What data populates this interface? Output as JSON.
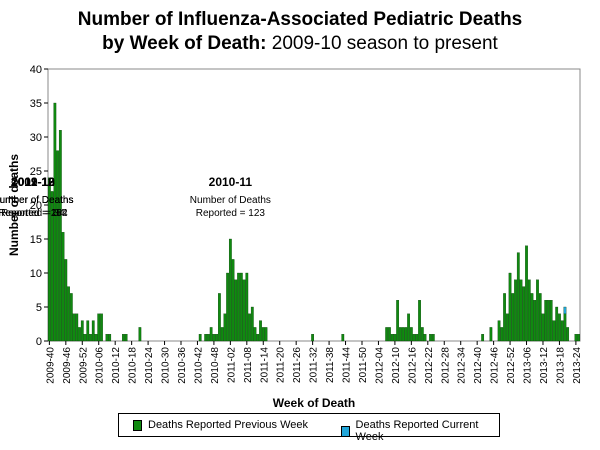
{
  "chart_data": {
    "type": "bar",
    "title_line1": "Number of Influenza-Associated Pediatric Deaths",
    "title_line2_bold": "by Week of Death:",
    "title_line2_rest": " 2009-10 season to present",
    "xlabel": "Week of Death",
    "ylabel": "Number of deaths",
    "ylim": [
      0,
      40
    ],
    "yticks": [
      0,
      5,
      10,
      15,
      20,
      25,
      30,
      35,
      40
    ],
    "xtick_labels": [
      "2009-40",
      "2009-46",
      "2009-52",
      "2010-06",
      "2010-12",
      "2010-18",
      "2010-24",
      "2010-30",
      "2010-36",
      "2010-42",
      "2010-48",
      "2011-02",
      "2011-08",
      "2011-14",
      "2011-20",
      "2011-26",
      "2011-32",
      "2011-38",
      "2011-44",
      "2011-50",
      "2012-04",
      "2012-10",
      "2012-16",
      "2012-22",
      "2012-28",
      "2012-34",
      "2012-40",
      "2012-46",
      "2012-52",
      "2013-06",
      "2013-12",
      "2013-18",
      "2013-24"
    ],
    "xtick_every": 6,
    "series": [
      {
        "name": "Deaths Reported Previous Week",
        "color": "#108a10",
        "values": [
          24,
          22,
          35,
          28,
          31,
          16,
          12,
          8,
          7,
          4,
          4,
          2,
          3,
          1,
          3,
          1,
          3,
          1,
          4,
          4,
          0,
          1,
          1,
          0,
          0,
          0,
          0,
          1,
          1,
          0,
          0,
          0,
          0,
          2,
          0,
          0,
          0,
          0,
          0,
          0,
          0,
          0,
          0,
          0,
          0,
          0,
          0,
          0,
          0,
          0,
          0,
          0,
          0,
          0,
          0,
          1,
          0,
          1,
          1,
          2,
          1,
          1,
          7,
          2,
          4,
          10,
          15,
          12,
          9,
          10,
          10,
          9,
          10,
          4,
          5,
          2,
          1,
          3,
          2,
          2,
          0,
          0,
          0,
          0,
          0,
          0,
          0,
          0,
          0,
          0,
          0,
          0,
          0,
          0,
          0,
          0,
          1,
          0,
          0,
          0,
          0,
          0,
          0,
          0,
          0,
          0,
          0,
          1,
          0,
          0,
          0,
          0,
          0,
          0,
          0,
          0,
          0,
          0,
          0,
          0,
          0,
          0,
          0,
          2,
          2,
          1,
          1,
          6,
          2,
          2,
          2,
          4,
          2,
          1,
          1,
          6,
          2,
          1,
          0,
          1,
          1,
          0,
          0,
          0,
          0,
          0,
          0,
          0,
          0,
          0,
          0,
          0,
          0,
          0,
          0,
          0,
          0,
          0,
          1,
          0,
          0,
          2,
          0,
          0,
          3,
          2,
          7,
          4,
          10,
          7,
          9,
          13,
          9,
          8,
          14,
          9,
          7,
          6,
          9,
          7,
          4,
          6,
          6,
          6,
          3,
          5,
          4,
          3,
          4,
          2,
          0,
          0,
          1,
          1
        ]
      },
      {
        "name": "Deaths Reported Current Week",
        "color": "#22a6d9",
        "values": [
          0,
          0,
          0,
          0,
          0,
          0,
          0,
          0,
          0,
          0,
          0,
          0,
          0,
          0,
          0,
          0,
          0,
          0,
          0,
          0,
          0,
          0,
          0,
          0,
          0,
          0,
          0,
          0,
          0,
          0,
          0,
          0,
          0,
          0,
          0,
          0,
          0,
          0,
          0,
          0,
          0,
          0,
          0,
          0,
          0,
          0,
          0,
          0,
          0,
          0,
          0,
          0,
          0,
          0,
          0,
          0,
          0,
          0,
          0,
          0,
          0,
          0,
          0,
          0,
          0,
          0,
          0,
          0,
          0,
          0,
          0,
          0,
          0,
          0,
          0,
          0,
          0,
          0,
          0,
          0,
          0,
          0,
          0,
          0,
          0,
          0,
          0,
          0,
          0,
          0,
          0,
          0,
          0,
          0,
          0,
          0,
          0,
          0,
          0,
          0,
          0,
          0,
          0,
          0,
          0,
          0,
          0,
          0,
          0,
          0,
          0,
          0,
          0,
          0,
          0,
          0,
          0,
          0,
          0,
          0,
          0,
          0,
          0,
          0,
          0,
          0,
          0,
          0,
          0,
          0,
          0,
          0,
          0,
          0,
          0,
          0,
          0,
          0,
          0,
          0,
          0,
          0,
          0,
          0,
          0,
          0,
          0,
          0,
          0,
          0,
          0,
          0,
          0,
          0,
          0,
          0,
          0,
          0,
          0,
          0,
          0,
          0,
          0,
          0,
          0,
          0,
          0,
          0,
          0,
          0,
          0,
          0,
          0,
          0,
          0,
          0,
          0,
          0,
          0,
          0,
          0,
          0,
          0,
          0,
          0,
          0,
          0,
          0,
          1,
          0,
          0,
          0,
          0,
          0,
          0,
          0,
          0,
          0,
          0,
          0,
          0,
          0,
          0,
          0
        ]
      }
    ],
    "annotations": [
      {
        "season": "2009-10",
        "label": "Number of Deaths",
        "reported": "Reported = 282",
        "center_week": "2010-02"
      },
      {
        "season": "2010-11",
        "label": "Number of Deaths",
        "reported": "Reported = 123",
        "center_week": "2011-02"
      },
      {
        "season": "2011-12",
        "label": "Number of Deaths",
        "reported": "Reported = 34",
        "center_week": "2012-08"
      },
      {
        "season": "2012-13",
        "label": "Number of Deaths",
        "reported": "Reported = 154",
        "center_week": "2013-08"
      }
    ],
    "legend": [
      "Deaths Reported Previous Week",
      "Deaths Reported Current Week"
    ],
    "legend_position": "bottom"
  }
}
